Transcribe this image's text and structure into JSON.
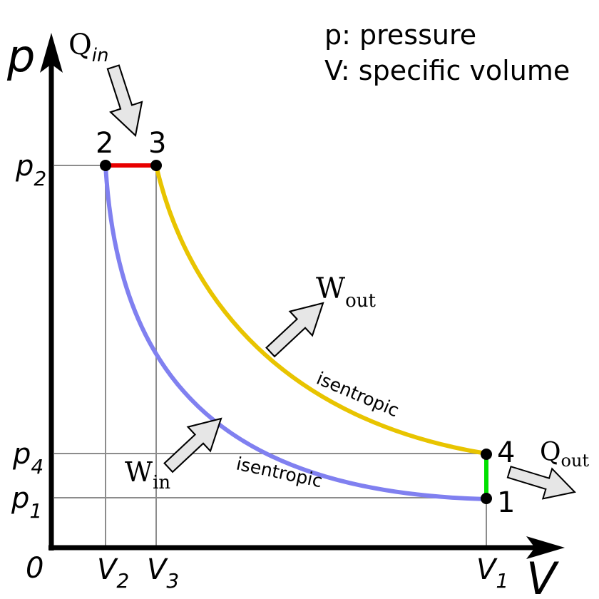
{
  "legend": {
    "line1": "p: pressure",
    "line2": "V: specific volume"
  },
  "axes": {
    "y_symbol": "p",
    "x_symbol": "V",
    "origin": "0",
    "y_ticks": [
      {
        "base": "p",
        "sub": "2"
      },
      {
        "base": "p",
        "sub": "4"
      },
      {
        "base": "p",
        "sub": "1"
      }
    ],
    "x_ticks": [
      {
        "base": "V",
        "sub": "2"
      },
      {
        "base": "V",
        "sub": "3"
      },
      {
        "base": "V",
        "sub": "1"
      }
    ]
  },
  "states": {
    "s1": "1",
    "s2": "2",
    "s3": "3",
    "s4": "4"
  },
  "heat": {
    "in": {
      "base": "Q",
      "sub": "in"
    },
    "out": {
      "base": "Q",
      "sub": "out"
    }
  },
  "work": {
    "in": {
      "base": "W",
      "sub": "in"
    },
    "out": {
      "base": "W",
      "sub": "out"
    }
  },
  "process_labels": {
    "compression": "isentropic",
    "expansion": "isentropic"
  },
  "colors": {
    "heat_addition": "#e80000",
    "expansion_curve": "#e8c400",
    "heat_rejection": "#00e000",
    "compression_curve": "#8080f0",
    "axis": "#000000",
    "guide": "#8c8c8c",
    "arrow_fill": "#e6e6e6"
  }
}
